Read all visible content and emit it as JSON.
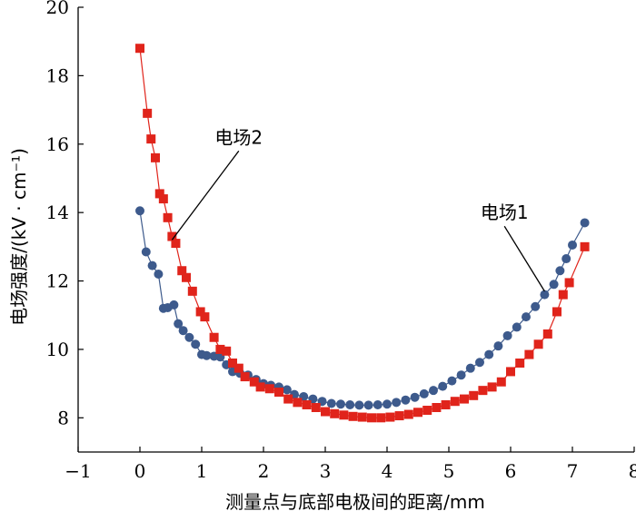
{
  "chart_data": {
    "type": "scatter",
    "title": "",
    "xlabel": "测量点与底部电极间的距离/mm",
    "ylabel": "电场强度/(kV · cm⁻¹)",
    "xlim": [
      -1,
      8
    ],
    "ylim": [
      7,
      20
    ],
    "xticks": [
      "−1",
      "0",
      "1",
      "2",
      "3",
      "4",
      "5",
      "6",
      "7",
      "8"
    ],
    "yticks": [
      "8",
      "10",
      "12",
      "14",
      "16",
      "18",
      "20"
    ],
    "grid": false,
    "annotations": [
      {
        "text": "电场1",
        "target": [
          6.55,
          11.7
        ],
        "label_pos": [
          5.9,
          13.6
        ]
      },
      {
        "text": "电场2",
        "target": [
          0.52,
          13.2
        ],
        "label_pos": [
          1.6,
          15.8
        ]
      }
    ],
    "series": [
      {
        "name": "电场1",
        "color": "#3d5a8c",
        "marker": "circle",
        "points": [
          [
            0.0,
            14.05
          ],
          [
            0.1,
            12.85
          ],
          [
            0.2,
            12.45
          ],
          [
            0.3,
            12.2
          ],
          [
            0.38,
            11.2
          ],
          [
            0.45,
            11.22
          ],
          [
            0.55,
            11.3
          ],
          [
            0.62,
            10.75
          ],
          [
            0.7,
            10.55
          ],
          [
            0.8,
            10.35
          ],
          [
            0.9,
            10.15
          ],
          [
            1.0,
            9.85
          ],
          [
            1.08,
            9.82
          ],
          [
            1.2,
            9.8
          ],
          [
            1.3,
            9.78
          ],
          [
            1.4,
            9.55
          ],
          [
            1.5,
            9.35
          ],
          [
            1.62,
            9.3
          ],
          [
            1.75,
            9.25
          ],
          [
            1.88,
            9.12
          ],
          [
            2.0,
            9.0
          ],
          [
            2.12,
            8.95
          ],
          [
            2.25,
            8.9
          ],
          [
            2.38,
            8.82
          ],
          [
            2.5,
            8.68
          ],
          [
            2.65,
            8.62
          ],
          [
            2.8,
            8.55
          ],
          [
            2.95,
            8.48
          ],
          [
            3.1,
            8.42
          ],
          [
            3.25,
            8.4
          ],
          [
            3.4,
            8.38
          ],
          [
            3.55,
            8.37
          ],
          [
            3.7,
            8.37
          ],
          [
            3.85,
            8.38
          ],
          [
            4.0,
            8.4
          ],
          [
            4.15,
            8.45
          ],
          [
            4.3,
            8.52
          ],
          [
            4.45,
            8.6
          ],
          [
            4.6,
            8.7
          ],
          [
            4.75,
            8.8
          ],
          [
            4.9,
            8.92
          ],
          [
            5.05,
            9.08
          ],
          [
            5.2,
            9.25
          ],
          [
            5.35,
            9.45
          ],
          [
            5.5,
            9.62
          ],
          [
            5.65,
            9.85
          ],
          [
            5.8,
            10.1
          ],
          [
            5.95,
            10.4
          ],
          [
            6.1,
            10.65
          ],
          [
            6.25,
            10.95
          ],
          [
            6.4,
            11.25
          ],
          [
            6.55,
            11.6
          ],
          [
            6.7,
            11.9
          ],
          [
            6.8,
            12.3
          ],
          [
            6.9,
            12.65
          ],
          [
            7.0,
            13.05
          ],
          [
            7.2,
            13.7
          ]
        ]
      },
      {
        "name": "电场2",
        "color": "#e0241b",
        "marker": "square",
        "points": [
          [
            0.0,
            18.8
          ],
          [
            0.12,
            16.9
          ],
          [
            0.18,
            16.15
          ],
          [
            0.25,
            15.6
          ],
          [
            0.32,
            14.55
          ],
          [
            0.38,
            14.4
          ],
          [
            0.45,
            13.85
          ],
          [
            0.52,
            13.3
          ],
          [
            0.58,
            13.1
          ],
          [
            0.68,
            12.3
          ],
          [
            0.75,
            12.1
          ],
          [
            0.85,
            11.7
          ],
          [
            0.98,
            11.1
          ],
          [
            1.05,
            10.95
          ],
          [
            1.2,
            10.35
          ],
          [
            1.3,
            10.0
          ],
          [
            1.4,
            9.95
          ],
          [
            1.5,
            9.6
          ],
          [
            1.6,
            9.45
          ],
          [
            1.7,
            9.2
          ],
          [
            1.85,
            9.05
          ],
          [
            1.95,
            8.9
          ],
          [
            2.1,
            8.85
          ],
          [
            2.25,
            8.75
          ],
          [
            2.4,
            8.55
          ],
          [
            2.55,
            8.45
          ],
          [
            2.7,
            8.38
          ],
          [
            2.85,
            8.3
          ],
          [
            3.0,
            8.18
          ],
          [
            3.15,
            8.12
          ],
          [
            3.3,
            8.08
          ],
          [
            3.45,
            8.04
          ],
          [
            3.6,
            8.02
          ],
          [
            3.75,
            8.0
          ],
          [
            3.9,
            8.0
          ],
          [
            4.05,
            8.02
          ],
          [
            4.2,
            8.06
          ],
          [
            4.35,
            8.1
          ],
          [
            4.5,
            8.16
          ],
          [
            4.65,
            8.22
          ],
          [
            4.8,
            8.3
          ],
          [
            4.95,
            8.38
          ],
          [
            5.1,
            8.48
          ],
          [
            5.25,
            8.55
          ],
          [
            5.4,
            8.65
          ],
          [
            5.55,
            8.8
          ],
          [
            5.7,
            8.9
          ],
          [
            5.85,
            9.05
          ],
          [
            6.0,
            9.35
          ],
          [
            6.15,
            9.6
          ],
          [
            6.3,
            9.85
          ],
          [
            6.45,
            10.15
          ],
          [
            6.6,
            10.45
          ],
          [
            6.75,
            11.1
          ],
          [
            6.85,
            11.6
          ],
          [
            6.95,
            11.95
          ],
          [
            7.2,
            13.0
          ]
        ]
      }
    ]
  }
}
